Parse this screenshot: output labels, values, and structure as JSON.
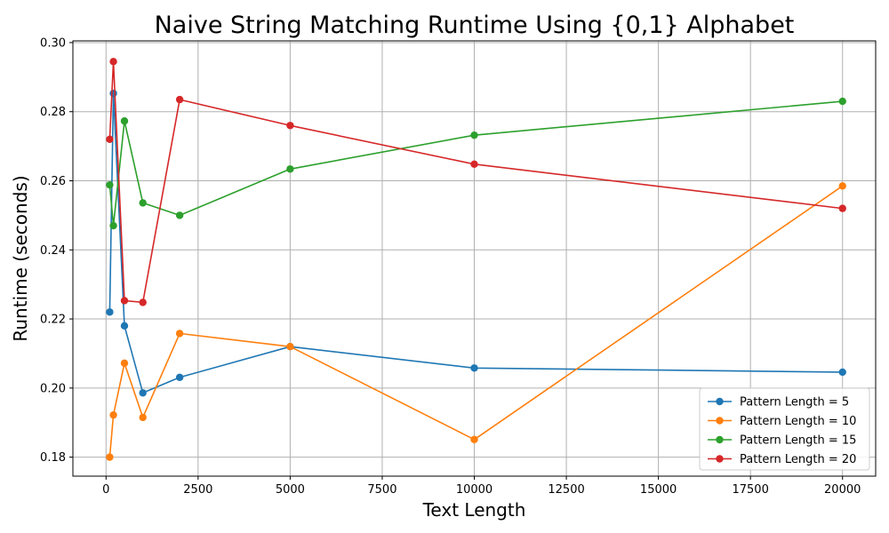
{
  "chart_data": {
    "type": "line",
    "title": "Naive String Matching Runtime Using {0,1} Alphabet",
    "xlabel": "Text Length",
    "ylabel": "Runtime (seconds)",
    "xlim": [
      -900,
      20900
    ],
    "ylim": [
      0.1745,
      0.3005
    ],
    "x_ticks": [
      0,
      2500,
      5000,
      7500,
      10000,
      12500,
      15000,
      17500,
      20000
    ],
    "x_tick_labels": [
      "0",
      "2500",
      "5000",
      "7500",
      "10000",
      "12500",
      "15000",
      "17500",
      "20000"
    ],
    "y_ticks": [
      0.18,
      0.2,
      0.22,
      0.24,
      0.26,
      0.28,
      0.3
    ],
    "y_tick_labels": [
      "0.18",
      "0.20",
      "0.22",
      "0.24",
      "0.26",
      "0.28",
      "0.30"
    ],
    "grid": true,
    "legend_position": "bottom-right",
    "x": [
      100,
      200,
      500,
      1000,
      2000,
      5000,
      10000,
      20000
    ],
    "series": [
      {
        "name": "Pattern Length = 5",
        "color": "#1f77b4",
        "values": [
          0.222,
          0.2853,
          0.218,
          0.1986,
          0.2031,
          0.212,
          0.2058,
          0.2046
        ]
      },
      {
        "name": "Pattern Length = 10",
        "color": "#ff7f0e",
        "values": [
          0.18,
          0.1922,
          0.2072,
          0.1915,
          0.2158,
          0.212,
          0.1851,
          0.2585
        ]
      },
      {
        "name": "Pattern Length = 15",
        "color": "#2ca02c",
        "values": [
          0.2588,
          0.247,
          0.2773,
          0.2536,
          0.25,
          0.2634,
          0.2732,
          0.283
        ]
      },
      {
        "name": "Pattern Length = 20",
        "color": "#d62728",
        "values": [
          0.272,
          0.2945,
          0.2253,
          0.2248,
          0.2835,
          0.276,
          0.2648,
          0.252
        ]
      }
    ]
  }
}
